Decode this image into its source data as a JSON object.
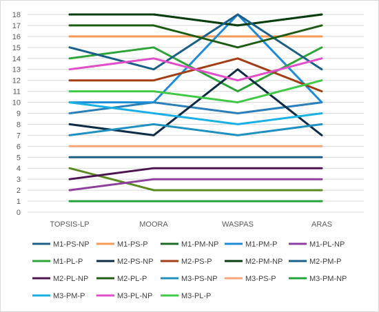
{
  "chart_data": {
    "type": "line",
    "categories": [
      "TOPSIS-LP",
      "MOORA",
      "WASPAS",
      "ARAS"
    ],
    "ylim": [
      0,
      18
    ],
    "yticks": [
      0,
      1,
      2,
      3,
      4,
      5,
      6,
      7,
      8,
      9,
      10,
      11,
      12,
      13,
      14,
      15,
      16,
      17,
      18
    ],
    "grid": true,
    "legend_position": "bottom",
    "series": [
      {
        "name": "M1-PS-NP",
        "color": "#1f5f85",
        "values": [
          5,
          5,
          5,
          5
        ]
      },
      {
        "name": "M1-PS-P",
        "color": "#f79a56",
        "values": [
          16,
          16,
          16,
          16
        ]
      },
      {
        "name": "M1-PM-NP",
        "color": "#1e6b25",
        "values": [
          18,
          18,
          17,
          18
        ]
      },
      {
        "name": "M1-PM-P",
        "color": "#1e8bd6",
        "values": [
          10,
          10,
          18,
          10
        ]
      },
      {
        "name": "M1-PL-NP",
        "color": "#8e3f9e",
        "values": [
          2,
          3,
          3,
          3
        ]
      },
      {
        "name": "M1-PL-P",
        "color": "#2da338",
        "values": [
          14,
          15,
          11,
          15
        ]
      },
      {
        "name": "M2-PS-NP",
        "color": "#0d2b45",
        "values": [
          8,
          7,
          13,
          7
        ]
      },
      {
        "name": "M2-PS-P",
        "color": "#a13e14",
        "values": [
          12,
          12,
          14,
          11
        ]
      },
      {
        "name": "M2-PM-NP",
        "color": "#0a3d10",
        "values": [
          18,
          18,
          17,
          18
        ]
      },
      {
        "name": "M2-PM-P",
        "color": "#1a5f86",
        "values": [
          15,
          13,
          18,
          13
        ]
      },
      {
        "name": "M2-PL-NP",
        "color": "#4a154f",
        "values": [
          3,
          4,
          4,
          4
        ]
      },
      {
        "name": "M2-PL-P",
        "color": "#1f5c13",
        "values": [
          17,
          17,
          15,
          17
        ]
      },
      {
        "name": "M3-PS-NP",
        "color": "#1f91c0",
        "values": [
          7,
          8,
          7,
          8
        ]
      },
      {
        "name": "M3-PS-P",
        "color": "#f9a777",
        "values": [
          6,
          6,
          6,
          6
        ]
      },
      {
        "name": "M3-PM-NP",
        "color": "#24a33b",
        "values": [
          1,
          1,
          1,
          1
        ]
      },
      {
        "name": "M3-PM-P",
        "color": "#19b0e6",
        "values": [
          10,
          9,
          8,
          9
        ]
      },
      {
        "name": "M3-PL-NP",
        "color": "#e04fc9",
        "values": [
          13,
          14,
          12,
          14
        ]
      },
      {
        "name": "M3-PL-P",
        "color": "#40c947",
        "values": [
          11,
          11,
          10,
          12
        ]
      }
    ],
    "extra_lines": [
      {
        "color": "#5a8a1e",
        "values": [
          4,
          2,
          2,
          2
        ]
      },
      {
        "color": "#2b7fb8",
        "values": [
          9,
          10,
          9,
          10
        ]
      }
    ]
  }
}
